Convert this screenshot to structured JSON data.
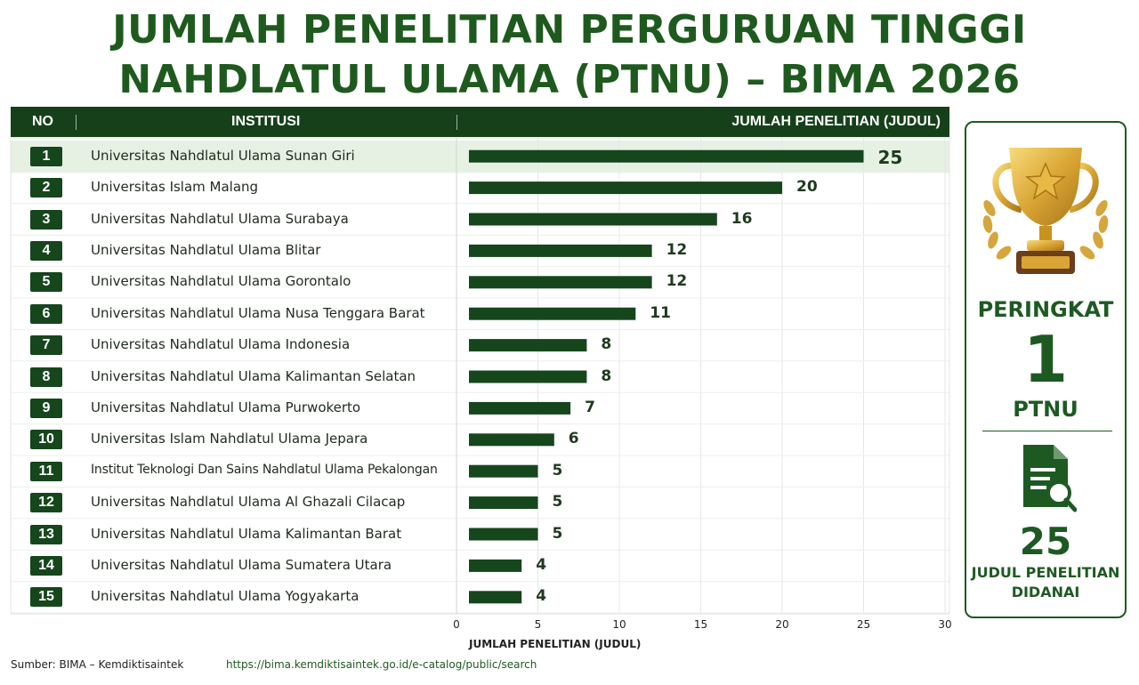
{
  "header": {
    "title_line1": "JUMLAH PENELITIAN PERGURUAN TINGGI",
    "title_line2": "NAHDLATUL ULAMA (PTNU) – BIMA 2026"
  },
  "table_header": {
    "no": "NO",
    "institusi": "INSTITUSI",
    "jumlah": "JUMLAH PENELITIAN (JUDUL)"
  },
  "chart_data": {
    "type": "bar",
    "orientation": "horizontal",
    "title": "JUMLAH PENELITIAN PERGURUAN TINGGI NAHDLATUL ULAMA (PTNU) – BIMA 2026",
    "xlabel": "JUMLAH PENELITIAN (JUDUL)",
    "ylabel": "INSTITUSI",
    "xlim": [
      0,
      30
    ],
    "xticks": [
      0,
      5,
      10,
      15,
      20,
      25,
      30
    ],
    "grid": true,
    "highlight_index": 0,
    "rows": [
      {
        "no": "1",
        "name": "Universitas Nahdlatul Ulama Sunan Giri",
        "value": 25
      },
      {
        "no": "2",
        "name": "Universitas Islam Malang",
        "value": 20
      },
      {
        "no": "3",
        "name": "Universitas Nahdlatul Ulama Surabaya",
        "value": 16
      },
      {
        "no": "4",
        "name": "Universitas Nahdlatul Ulama Blitar",
        "value": 12
      },
      {
        "no": "5",
        "name": "Universitas Nahdlatul Ulama Gorontalo",
        "value": 12
      },
      {
        "no": "6",
        "name": "Universitas Nahdlatul Ulama Nusa Tenggara Barat",
        "value": 11
      },
      {
        "no": "7",
        "name": "Universitas Nahdlatul Ulama Indonesia",
        "value": 8
      },
      {
        "no": "8",
        "name": "Universitas Nahdlatul Ulama Kalimantan Selatan",
        "value": 8
      },
      {
        "no": "9",
        "name": "Universitas Nahdlatul Ulama Purwokerto",
        "value": 7
      },
      {
        "no": "10",
        "name": "Universitas Islam Nahdlatul Ulama Jepara",
        "value": 6
      },
      {
        "no": "11",
        "name": "Institut Teknologi Dan Sains Nahdlatul Ulama Pekalongan",
        "value": 5
      },
      {
        "no": "12",
        "name": "Universitas Nahdlatul Ulama Al Ghazali Cilacap",
        "value": 5
      },
      {
        "no": "13",
        "name": "Universitas Nahdlatul Ulama Kalimantan Barat",
        "value": 5
      },
      {
        "no": "14",
        "name": "Universitas Nahdlatul Ulama Sumatera Utara",
        "value": 4
      },
      {
        "no": "15",
        "name": "Universitas Nahdlatul Ulama Yogyakarta",
        "value": 4
      }
    ],
    "colors": {
      "bar": "#16461c",
      "highlight_row": "#e6f1e3",
      "header": "#15401a"
    }
  },
  "side_panel": {
    "rank_label": "PERINGKAT",
    "rank_value": "1",
    "rank_group": "PTNU",
    "count_value": "25",
    "count_desc_line1": "JUDUL PENELITIAN",
    "count_desc_line2": "DIDANAI",
    "icons": [
      "trophy-icon",
      "document-search-icon"
    ]
  },
  "footer": {
    "source": "Sumber: BIMA – Kemdiktisaintek",
    "url": "https://bima.kemdiktisaintek.go.id/e-catalog/public/search"
  }
}
